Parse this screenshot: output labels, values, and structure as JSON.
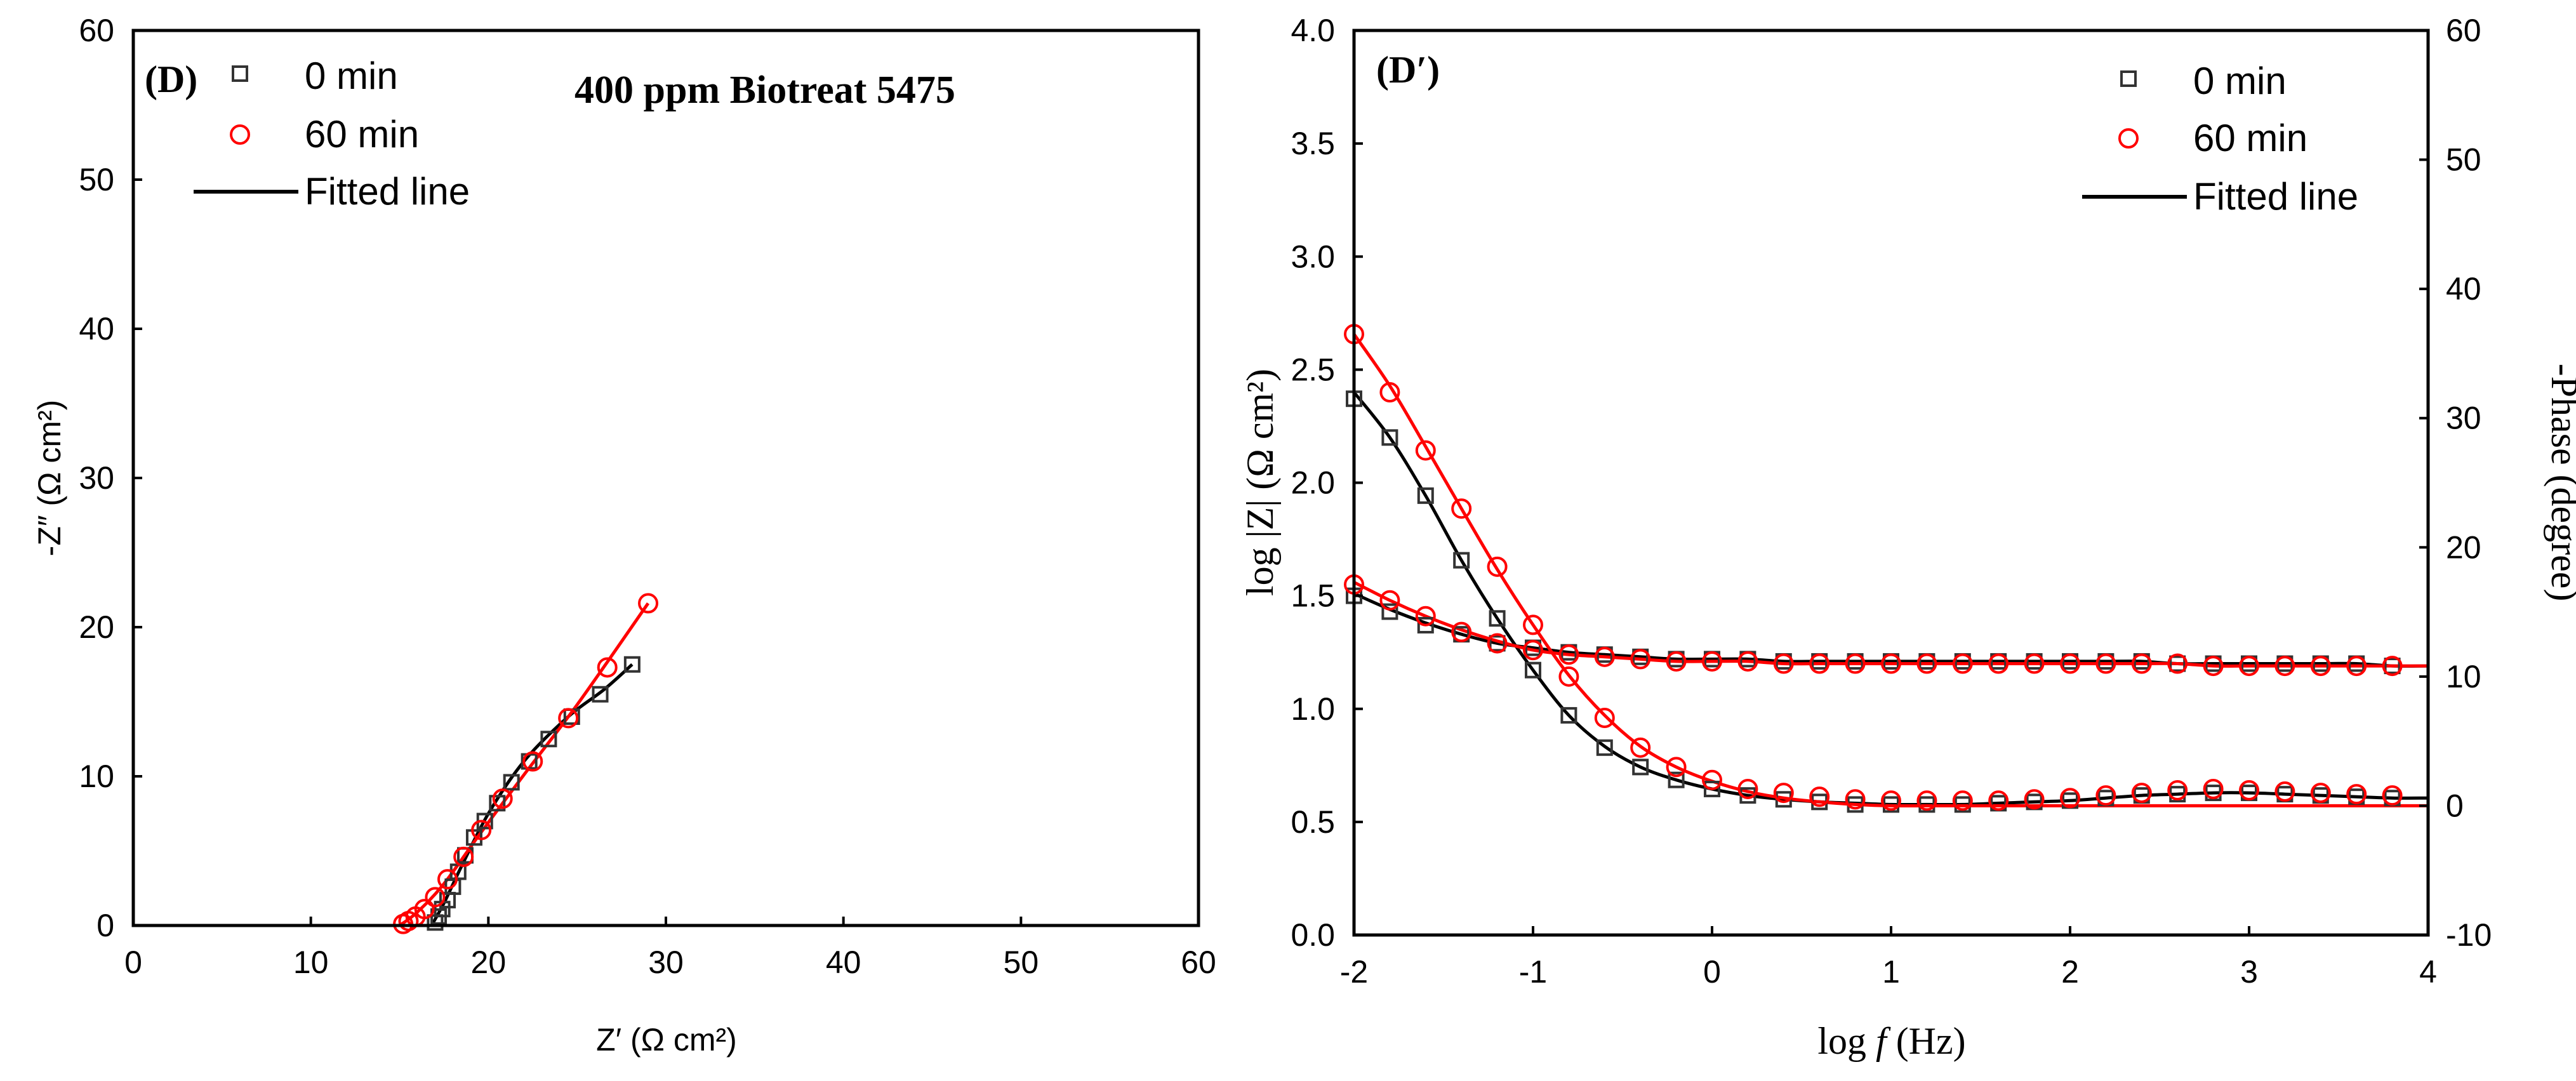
{
  "chart_data": [
    {
      "type": "scatter",
      "panel_label": "(D)",
      "title": "400 ppm Biotreat 5475",
      "xlabel": "Z′ (Ω cm²)",
      "ylabel": "-Z″ (Ω cm²)",
      "xlim": [
        0,
        60
      ],
      "ylim": [
        0,
        60
      ],
      "xticks": [
        "0",
        "10",
        "20",
        "30",
        "40",
        "50",
        "60"
      ],
      "yticks": [
        "0",
        "10",
        "20",
        "30",
        "40",
        "50",
        "60"
      ],
      "legend": {
        "position": "top-left",
        "entries": [
          "0 min",
          "60 min",
          "Fitted line"
        ]
      },
      "series": [
        {
          "name": "0 min",
          "marker": "square",
          "color": "#333333",
          "x": [
            17.0,
            17.2,
            17.4,
            17.7,
            18.0,
            18.3,
            18.7,
            19.2,
            19.8,
            20.5,
            21.3,
            22.3,
            23.4,
            24.7,
            26.3,
            28.1
          ],
          "y": [
            0.2,
            0.6,
            1.1,
            1.7,
            2.6,
            3.6,
            4.7,
            5.9,
            7.0,
            8.2,
            9.6,
            11.0,
            12.5,
            14.0,
            15.5,
            17.5
          ]
        },
        {
          "name": "60 min",
          "marker": "circle",
          "color": "#ff0000",
          "x": [
            15.2,
            15.5,
            15.9,
            16.4,
            17.0,
            17.7,
            18.6,
            19.6,
            20.8,
            22.5,
            24.5,
            26.7,
            29.0
          ],
          "y": [
            0.1,
            0.3,
            0.6,
            1.1,
            1.9,
            3.1,
            4.6,
            6.4,
            8.5,
            11.0,
            13.9,
            17.3,
            21.6
          ]
        },
        {
          "name": "Fitted line 0 min",
          "style": "line",
          "color": "#000000",
          "x": [
            16.8,
            17.5,
            18.5,
            20.0,
            22.0,
            24.5,
            26.5,
            28.1
          ],
          "y": [
            0.0,
            1.5,
            4.0,
            7.5,
            11.0,
            14.0,
            15.8,
            17.5
          ]
        },
        {
          "name": "Fitted line 60 min",
          "style": "line",
          "color": "#ff0000",
          "x": [
            15.0,
            16.0,
            17.5,
            19.5,
            22.0,
            25.0,
            29.0
          ],
          "y": [
            0.0,
            0.9,
            2.8,
            6.1,
            10.1,
            14.8,
            21.6
          ]
        }
      ]
    },
    {
      "type": "line",
      "panel_label": "(D′)",
      "xlabel_prefix": "log ",
      "xlabel_var": "f",
      "xlabel_suffix": " (Hz)",
      "ylabel": "log |Z| (Ω cm²)",
      "y2label": "-Phase (degree)",
      "xlim": [
        -2,
        4
      ],
      "ylim": [
        0,
        4
      ],
      "y2lim": [
        -10,
        60
      ],
      "xticks": [
        "-2",
        "-1",
        "0",
        "1",
        "2",
        "3",
        "4"
      ],
      "yticks": [
        "0.0",
        "0.5",
        "1.0",
        "1.5",
        "2.0",
        "2.5",
        "3.0",
        "3.5",
        "4.0"
      ],
      "y2ticks": [
        "-10",
        "0",
        "10",
        "20",
        "30",
        "40",
        "50",
        "60"
      ],
      "legend": {
        "position": "top-right",
        "entries": [
          "0 min",
          "60 min",
          "Fitted line"
        ]
      },
      "x": [
        -2.0,
        -1.8,
        -1.6,
        -1.4,
        -1.2,
        -1.0,
        -0.8,
        -0.6,
        -0.4,
        -0.2,
        0.0,
        0.2,
        0.4,
        0.6,
        0.8,
        1.0,
        1.2,
        1.4,
        1.6,
        1.8,
        2.0,
        2.2,
        2.4,
        2.6,
        2.8,
        3.0,
        3.2,
        3.4,
        3.6,
        3.8
      ],
      "series": [
        {
          "name": "0 min |Z|",
          "axis": "left",
          "marker": "square",
          "color": "#333333",
          "values": [
            1.5,
            1.43,
            1.37,
            1.33,
            1.29,
            1.27,
            1.25,
            1.24,
            1.23,
            1.22,
            1.22,
            1.22,
            1.21,
            1.21,
            1.21,
            1.21,
            1.21,
            1.21,
            1.21,
            1.21,
            1.21,
            1.21,
            1.21,
            1.2,
            1.2,
            1.2,
            1.2,
            1.2,
            1.2,
            1.19
          ]
        },
        {
          "name": "0 min phase",
          "axis": "right",
          "marker": "square",
          "color": "#333333",
          "values": [
            31.5,
            28.5,
            24.0,
            19.0,
            14.5,
            10.5,
            7.0,
            4.5,
            3.0,
            2.0,
            1.3,
            0.8,
            0.5,
            0.3,
            0.1,
            0.1,
            0.1,
            0.1,
            0.2,
            0.3,
            0.4,
            0.6,
            0.8,
            0.9,
            1.0,
            1.0,
            0.9,
            0.8,
            0.7,
            0.6
          ]
        },
        {
          "name": "60 min |Z|",
          "axis": "left",
          "marker": "circle",
          "color": "#ff0000",
          "values": [
            1.55,
            1.48,
            1.41,
            1.34,
            1.29,
            1.26,
            1.24,
            1.23,
            1.22,
            1.21,
            1.21,
            1.21,
            1.2,
            1.2,
            1.2,
            1.2,
            1.2,
            1.2,
            1.2,
            1.2,
            1.2,
            1.2,
            1.2,
            1.2,
            1.19,
            1.19,
            1.19,
            1.19,
            1.19,
            1.19
          ]
        },
        {
          "name": "60 min phase",
          "axis": "right",
          "marker": "circle",
          "color": "#ff0000",
          "values": [
            36.5,
            32.0,
            27.5,
            23.0,
            18.5,
            14.0,
            10.0,
            6.8,
            4.5,
            3.0,
            2.0,
            1.3,
            1.0,
            0.7,
            0.5,
            0.4,
            0.4,
            0.4,
            0.4,
            0.5,
            0.6,
            0.8,
            1.0,
            1.2,
            1.3,
            1.2,
            1.1,
            1.0,
            0.9,
            0.8
          ]
        },
        {
          "name": "Fitted 0 min |Z|",
          "axis": "left",
          "style": "line",
          "color": "#000000",
          "values": [
            1.51,
            1.44,
            1.38,
            1.33,
            1.29,
            1.27,
            1.25,
            1.24,
            1.23,
            1.22,
            1.22,
            1.22,
            1.21,
            1.21,
            1.21,
            1.21,
            1.21,
            1.21,
            1.21,
            1.21,
            1.21,
            1.21,
            1.21,
            1.2,
            1.2,
            1.2,
            1.2,
            1.2,
            1.2,
            1.19
          ]
        },
        {
          "name": "Fitted 0 min phase",
          "axis": "right",
          "style": "line",
          "color": "#000000",
          "values": [
            32.0,
            28.5,
            24.0,
            19.0,
            14.5,
            10.5,
            7.0,
            4.6,
            3.0,
            2.0,
            1.3,
            0.8,
            0.5,
            0.3,
            0.2,
            0.1,
            0.1,
            0.1,
            0.2,
            0.3,
            0.4,
            0.6,
            0.8,
            0.9,
            1.0,
            1.0,
            0.9,
            0.8,
            0.7,
            0.6
          ]
        },
        {
          "name": "Fitted 60 min |Z|",
          "axis": "left",
          "style": "line",
          "color": "#ff0000",
          "values": [
            1.56,
            1.48,
            1.41,
            1.35,
            1.3,
            1.26,
            1.24,
            1.23,
            1.22,
            1.21,
            1.21,
            1.21,
            1.2,
            1.2,
            1.2,
            1.2,
            1.2,
            1.2,
            1.2,
            1.2,
            1.2,
            1.2,
            1.2,
            1.2,
            1.19,
            1.19,
            1.19,
            1.19,
            1.19,
            1.19
          ]
        },
        {
          "name": "Fitted 60 min phase",
          "axis": "right",
          "style": "line",
          "color": "#ff0000",
          "values": [
            36.5,
            32.5,
            27.8,
            23.0,
            18.3,
            14.0,
            10.1,
            7.0,
            4.6,
            3.0,
            1.9,
            1.1,
            0.6,
            0.3,
            0.1,
            0.0,
            0.0,
            0.0,
            0.0,
            0.0,
            0.0,
            0.0,
            0.0,
            0.0,
            0.0,
            0.0,
            0.0,
            0.0,
            0.0,
            0.0
          ]
        }
      ]
    }
  ]
}
